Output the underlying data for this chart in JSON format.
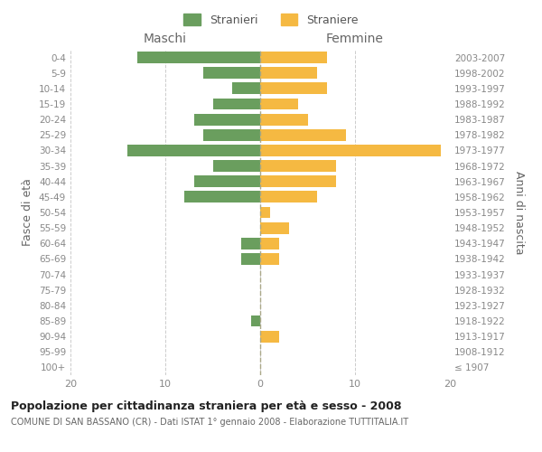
{
  "age_groups": [
    "100+",
    "95-99",
    "90-94",
    "85-89",
    "80-84",
    "75-79",
    "70-74",
    "65-69",
    "60-64",
    "55-59",
    "50-54",
    "45-49",
    "40-44",
    "35-39",
    "30-34",
    "25-29",
    "20-24",
    "15-19",
    "10-14",
    "5-9",
    "0-4"
  ],
  "birth_years": [
    "≤ 1907",
    "1908-1912",
    "1913-1917",
    "1918-1922",
    "1923-1927",
    "1928-1932",
    "1933-1937",
    "1938-1942",
    "1943-1947",
    "1948-1952",
    "1953-1957",
    "1958-1962",
    "1963-1967",
    "1968-1972",
    "1973-1977",
    "1978-1982",
    "1983-1987",
    "1988-1992",
    "1993-1997",
    "1998-2002",
    "2003-2007"
  ],
  "maschi": [
    0,
    0,
    0,
    1,
    0,
    0,
    0,
    2,
    2,
    0,
    0,
    8,
    7,
    5,
    14,
    6,
    7,
    5,
    3,
    6,
    13
  ],
  "femmine": [
    0,
    0,
    2,
    0,
    0,
    0,
    0,
    2,
    2,
    3,
    1,
    6,
    8,
    8,
    19,
    9,
    5,
    4,
    7,
    6,
    7
  ],
  "color_maschi": "#6a9e5e",
  "color_femmine": "#f5b942",
  "title": "Popolazione per cittadinanza straniera per età e sesso - 2008",
  "subtitle": "COMUNE DI SAN BASSANO (CR) - Dati ISTAT 1° gennaio 2008 - Elaborazione TUTTITALIA.IT",
  "ylabel_left": "Fasce di età",
  "ylabel_right": "Anni di nascita",
  "label_maschi": "Maschi",
  "label_femmine": "Femmine",
  "legend_stranieri": "Stranieri",
  "legend_straniere": "Straniere",
  "xlim": 20,
  "background_color": "#ffffff",
  "grid_color": "#cccccc"
}
